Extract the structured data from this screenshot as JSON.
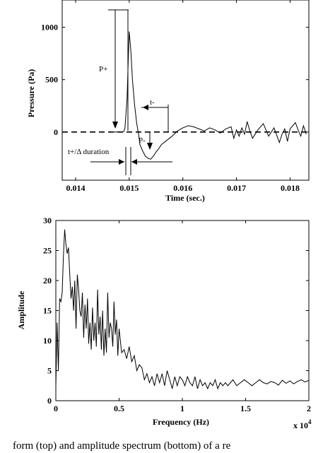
{
  "caption": "form (top) and amplitude spectrum (bottom) of a re",
  "chart_data": [
    {
      "type": "line",
      "title": "",
      "xlabel": "Time (sec.)",
      "ylabel": "Pressure (Pa)",
      "xlim": [
        0.01375,
        0.01835
      ],
      "ylim": [
        -460,
        1260
      ],
      "xticks": [
        0.014,
        0.015,
        0.016,
        0.017,
        0.018
      ],
      "xtick_labels": [
        "0.014",
        "0.015",
        "0.016",
        "0.017",
        "0.018"
      ],
      "yticks": [
        0,
        500,
        1000
      ],
      "ytick_labels": [
        "0",
        "500",
        "1000"
      ],
      "grid": false,
      "baseline_dashed": 0,
      "series": [
        {
          "x": [
            0.0147,
            0.01485,
            0.0149,
            0.01492,
            0.01496,
            0.01498,
            0.015,
            0.01503,
            0.01506,
            0.0151,
            0.01514,
            0.01518,
            0.0152,
            0.01525,
            0.0153,
            0.01535,
            0.0154,
            0.01545,
            0.0155,
            0.01555,
            0.0156,
            0.0157,
            0.0158,
            0.0159,
            0.016,
            0.0161,
            0.0162,
            0.0163,
            0.0164,
            0.0165,
            0.0166,
            0.0167,
            0.0168,
            0.0169,
            0.01695,
            0.017,
            0.01705,
            0.0171,
            0.01715,
            0.0172,
            0.01725,
            0.0173,
            0.0174,
            0.0175,
            0.0176,
            0.0177,
            0.0178,
            0.01785,
            0.0179,
            0.01795,
            0.018,
            0.0181,
            0.01815,
            0.0182,
            0.01825,
            0.0183
          ],
          "y": [
            0,
            0,
            5,
            40,
            320,
            650,
            960,
            780,
            500,
            260,
            80,
            -40,
            -120,
            -180,
            -230,
            -250,
            -260,
            -230,
            -190,
            -160,
            -120,
            -80,
            -40,
            10,
            40,
            60,
            50,
            30,
            10,
            40,
            20,
            -10,
            30,
            50,
            -60,
            20,
            -40,
            40,
            -20,
            100,
            10,
            -60,
            20,
            80,
            -40,
            40,
            -100,
            -20,
            30,
            -90,
            30,
            90,
            20,
            -40,
            60,
            -20
          ]
        }
      ],
      "annotations": [
        {
          "text": "P+",
          "x": 0.01485,
          "y": 1000
        },
        {
          "text": "t-",
          "x": 0.0154,
          "y": 300
        },
        {
          "text": "P-",
          "x": 0.01508,
          "y": -120
        },
        {
          "text": "t+/Δ duration",
          "x": 0.01424,
          "y": -230
        }
      ]
    },
    {
      "type": "line",
      "title": "",
      "xlabel": "Frequency (Hz)",
      "ylabel": "Amplitude",
      "xlim": [
        0,
        20000
      ],
      "ylim": [
        0,
        30
      ],
      "xticks": [
        0,
        5000,
        10000,
        15000,
        20000
      ],
      "xtick_labels": [
        "0",
        "0.5",
        "1",
        "1.5",
        "2"
      ],
      "x_multiplier": "x 10",
      "x_multiplier_exp": "4",
      "yticks": [
        0,
        5,
        10,
        15,
        20,
        25,
        30
      ],
      "ytick_labels": [
        "0",
        "5",
        "10",
        "15",
        "20",
        "25",
        "30"
      ],
      "grid": false,
      "series": [
        {
          "x": [
            0,
            100,
            200,
            300,
            400,
            500,
            600,
            700,
            800,
            900,
            1000,
            1100,
            1200,
            1300,
            1400,
            1500,
            1600,
            1700,
            1800,
            1900,
            2000,
            2100,
            2200,
            2300,
            2400,
            2500,
            2600,
            2700,
            2800,
            2900,
            3000,
            3100,
            3200,
            3300,
            3400,
            3500,
            3600,
            3700,
            3800,
            3900,
            4000,
            4100,
            4200,
            4300,
            4400,
            4500,
            4600,
            4700,
            4800,
            4900,
            5000,
            5200,
            5400,
            5600,
            5800,
            6000,
            6200,
            6400,
            6600,
            6800,
            7000,
            7200,
            7400,
            7600,
            7800,
            8000,
            8200,
            8400,
            8600,
            8800,
            9000,
            9200,
            9400,
            9600,
            9800,
            10000,
            10200,
            10400,
            10600,
            10800,
            11000,
            11200,
            11400,
            11600,
            11800,
            12000,
            12200,
            12400,
            12600,
            12800,
            13000,
            13200,
            13400,
            13600,
            13800,
            14000,
            14300,
            14600,
            14900,
            15200,
            15500,
            15800,
            16100,
            16400,
            16700,
            17000,
            17300,
            17600,
            17900,
            18200,
            18500,
            18800,
            19100,
            19400,
            19700,
            20000
          ],
          "y": [
            2.3,
            13,
            5,
            17,
            16.5,
            18,
            24,
            28.5,
            26,
            24.5,
            25.5,
            21,
            17,
            19,
            15,
            20,
            12,
            21,
            18.5,
            15,
            14,
            18,
            10.5,
            16,
            12,
            17,
            9.5,
            13,
            8.5,
            15.5,
            10,
            13,
            9,
            18.5,
            11,
            14,
            8.5,
            15,
            7.5,
            12,
            8,
            18,
            10.5,
            13,
            12,
            9,
            16.5,
            11,
            13.5,
            7.5,
            12,
            8,
            8.5,
            7,
            9,
            6.5,
            7.5,
            5,
            6,
            5.5,
            3.5,
            4.5,
            3,
            4,
            2.5,
            4.5,
            3,
            4.5,
            2.5,
            5,
            3.5,
            2,
            4,
            2.5,
            4,
            3.5,
            2.5,
            4,
            3,
            2.5,
            4,
            2,
            3.5,
            2.5,
            3,
            2,
            3,
            2.5,
            3.5,
            2,
            3,
            2.5,
            3,
            2.5,
            3,
            3.5,
            2.5,
            3,
            3.5,
            3,
            2.5,
            3,
            3.5,
            3,
            2.8,
            3.2,
            3,
            2.6,
            3.4,
            2.9,
            3.3,
            2.8,
            3.2,
            3.5,
            3.1,
            3.4
          ]
        }
      ]
    }
  ]
}
